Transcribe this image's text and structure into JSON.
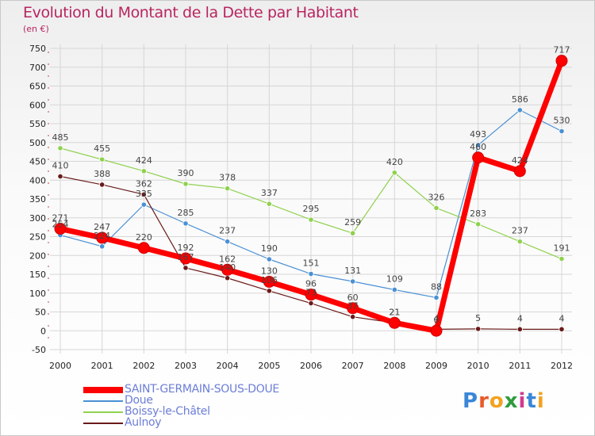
{
  "header": {
    "title": "Evolution du Montant de la Dette par Habitant",
    "subtitle": "(en €)"
  },
  "chart_data": {
    "type": "line",
    "title": "Evolution du Montant de la Dette par Habitant",
    "subtitle": "(en €)",
    "x": [
      "2000",
      "2001",
      "2002",
      "2003",
      "2004",
      "2005",
      "2006",
      "2007",
      "2008",
      "2009",
      "2010",
      "2011",
      "2012"
    ],
    "ylim": [
      -50,
      750
    ],
    "yticks": [
      -50,
      0,
      50,
      100,
      150,
      200,
      250,
      300,
      350,
      400,
      450,
      500,
      550,
      600,
      650,
      700,
      750
    ],
    "grid": true,
    "legend_position": "bottom",
    "series": [
      {
        "name": "SAINT-GERMAIN-SOUS-DOUE",
        "color": "#ff0000",
        "values": [
          271,
          247,
          220,
          192,
          162,
          130,
          96,
          60,
          21,
          0,
          460,
          424,
          717
        ]
      },
      {
        "name": "Doue",
        "color": "#4a90d4",
        "values": [
          254,
          224,
          335,
          285,
          237,
          190,
          151,
          131,
          109,
          88,
          493,
          586,
          530
        ]
      },
      {
        "name": "Boissy-le-Châtel",
        "color": "#8fd14f",
        "values": [
          485,
          455,
          424,
          390,
          378,
          337,
          295,
          259,
          420,
          326,
          283,
          237,
          191
        ]
      },
      {
        "name": "Aulnoy",
        "color": "#6b1a1a",
        "values": [
          410,
          388,
          362,
          167,
          140,
          106,
          73,
          37,
          21,
          4,
          5,
          4,
          4
        ]
      }
    ]
  },
  "legend": {
    "items": [
      "SAINT-GERMAIN-SOUS-DOUE",
      "Doue",
      "Boissy-le-Châtel",
      "Aulnoy"
    ]
  },
  "logo": {
    "text": "Proxiti",
    "letter_colors": [
      "#3a86d8",
      "#e85b2a",
      "#f2a221",
      "#2e9c3e",
      "#d23b8e",
      "#3a86d8",
      "#f2a221"
    ]
  }
}
